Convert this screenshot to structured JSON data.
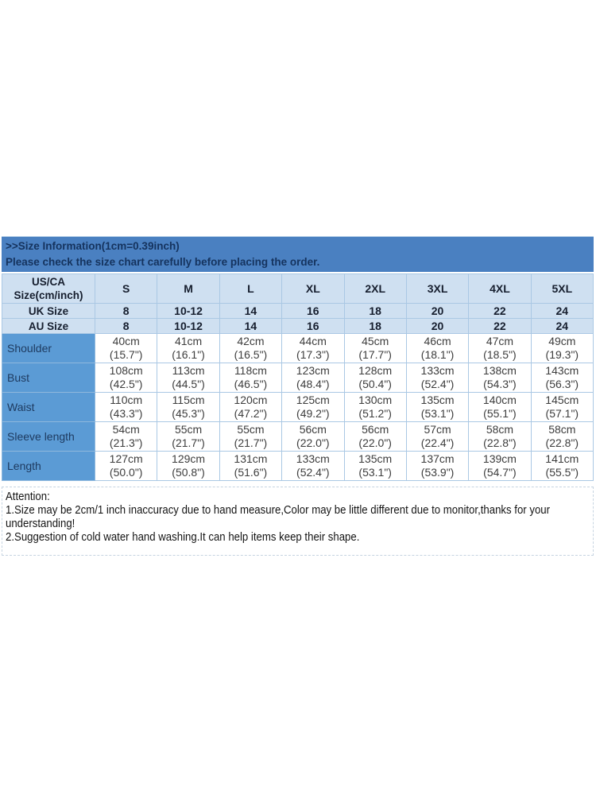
{
  "banner": {
    "line1": ">>Size Information(1cm=0.39inch)",
    "line2": "Please check the size chart carefully before placing the order."
  },
  "size_table": {
    "corner_header_line1": "US/CA",
    "corner_header_line2": "Size(cm/inch)",
    "size_columns": [
      "S",
      "M",
      "L",
      "XL",
      "2XL",
      "3XL",
      "4XL",
      "5XL"
    ],
    "uk_row": {
      "label": "UK Size",
      "values": [
        "8",
        "10-12",
        "14",
        "16",
        "18",
        "20",
        "22",
        "24"
      ]
    },
    "au_row": {
      "label": "AU Size",
      "values": [
        "8",
        "10-12",
        "14",
        "16",
        "18",
        "20",
        "22",
        "24"
      ]
    },
    "measurement_rows": [
      {
        "label": "Shoulder",
        "cm": [
          "40cm",
          "41cm",
          "42cm",
          "44cm",
          "45cm",
          "46cm",
          "47cm",
          "49cm"
        ],
        "inch": [
          "(15.7\")",
          "(16.1\")",
          "(16.5\")",
          "(17.3\")",
          "(17.7\")",
          "(18.1\")",
          "(18.5\")",
          "(19.3\")"
        ]
      },
      {
        "label": "Bust",
        "cm": [
          "108cm",
          "113cm",
          "118cm",
          "123cm",
          "128cm",
          "133cm",
          "138cm",
          "143cm"
        ],
        "inch": [
          "(42.5\")",
          "(44.5\")",
          "(46.5\")",
          "(48.4\")",
          "(50.4\")",
          "(52.4\")",
          "(54.3\")",
          "(56.3\")"
        ]
      },
      {
        "label": "Waist",
        "cm": [
          "110cm",
          "115cm",
          "120cm",
          "125cm",
          "130cm",
          "135cm",
          "140cm",
          "145cm"
        ],
        "inch": [
          "(43.3\")",
          "(45.3\")",
          "(47.2\")",
          "(49.2\")",
          "(51.2\")",
          "(53.1\")",
          "(55.1\")",
          "(57.1\")"
        ]
      },
      {
        "label": "Sleeve length",
        "cm": [
          "54cm",
          "55cm",
          "55cm",
          "56cm",
          "56cm",
          "57cm",
          "58cm",
          "58cm"
        ],
        "inch": [
          "(21.3\")",
          "(21.7\")",
          "(21.7\")",
          "(22.0\")",
          "(22.0\")",
          "(22.4\")",
          "(22.8\")",
          "(22.8\")"
        ]
      },
      {
        "label": "Length",
        "cm": [
          "127cm",
          "129cm",
          "131cm",
          "133cm",
          "135cm",
          "137cm",
          "139cm",
          "141cm"
        ],
        "inch": [
          "(50.0\")",
          "(50.8\")",
          "(51.6\")",
          "(52.4\")",
          "(53.1\")",
          "(53.9\")",
          "(54.7\")",
          "(55.5\")"
        ]
      }
    ]
  },
  "attention": {
    "lines": [
      "Attention:",
      "1.Size may be 2cm/1 inch inaccuracy due to hand measure,Color may be little different due to monitor,thanks for your",
      "understanding!",
      "2.Suggestion of cold water hand washing.It can help items keep their shape."
    ]
  },
  "colors": {
    "banner_bg": "#4a80c1",
    "banner_text": "#15335e",
    "table_header_bg": "#cfe0f1",
    "row_label_bg": "#5b9bd5",
    "cell_border": "#aac8e4",
    "data_text": "#3d3d3d"
  }
}
